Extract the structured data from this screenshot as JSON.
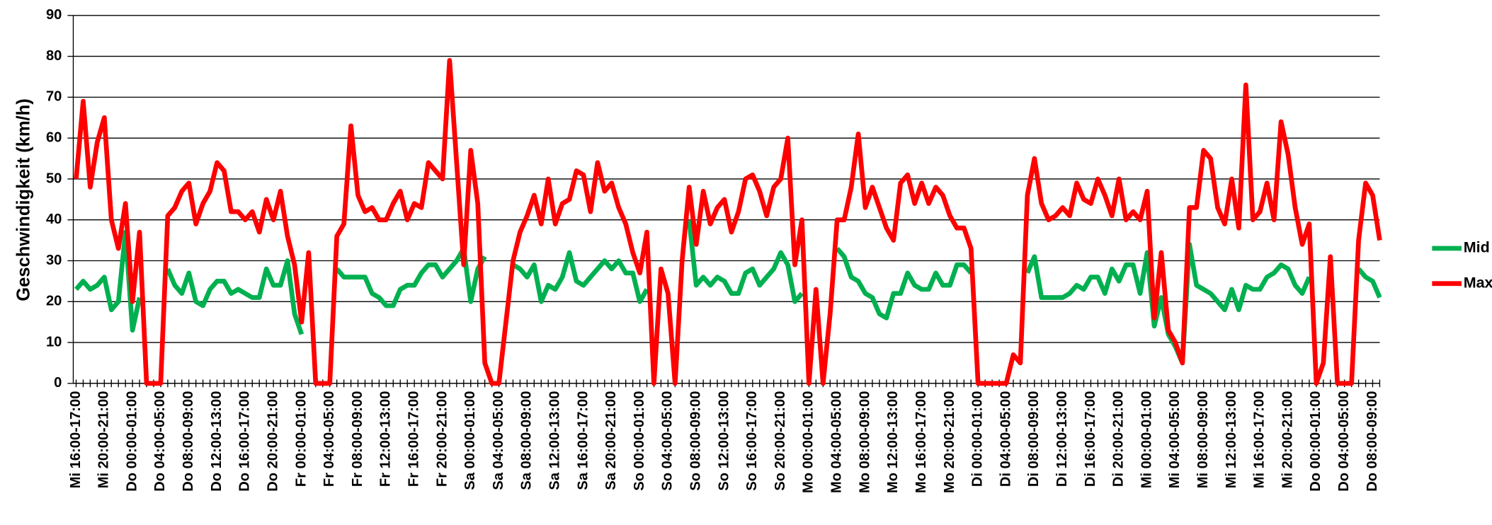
{
  "chart_data": {
    "type": "line",
    "y_label": "Geschwindigkeit (km/h)",
    "ylim": [
      0,
      90
    ],
    "yticks": [
      0,
      10,
      20,
      30,
      40,
      50,
      60,
      70,
      80,
      90
    ],
    "grid": true,
    "legend": "right",
    "categories": [
      "Mi 16:00-17:00",
      null,
      null,
      null,
      "Mi 20:00-21:00",
      null,
      null,
      null,
      "Do 00:00-01:00",
      null,
      null,
      null,
      "Do 04:00-05:00",
      null,
      null,
      null,
      "Do 08:00-09:00",
      null,
      null,
      null,
      "Do 12:00-13:00",
      null,
      null,
      null,
      "Do 16:00-17:00",
      null,
      null,
      null,
      "Do 20:00-21:00",
      null,
      null,
      null,
      "Fr 00:00-01:00",
      null,
      null,
      null,
      "Fr 04:00-05:00",
      null,
      null,
      null,
      "Fr 08:00-09:00",
      null,
      null,
      null,
      "Fr 12:00-13:00",
      null,
      null,
      null,
      "Fr 16:00-17:00",
      null,
      null,
      null,
      "Fr 20:00-21:00",
      null,
      null,
      null,
      "Sa 00:00-01:00",
      null,
      null,
      null,
      "Sa 04:00-05:00",
      null,
      null,
      null,
      "Sa 08:00-09:00",
      null,
      null,
      null,
      "Sa 12:00-13:00",
      null,
      null,
      null,
      "Sa 16:00-17:00",
      null,
      null,
      null,
      "Sa 20:00-21:00",
      null,
      null,
      null,
      "So 00:00-01:00",
      null,
      null,
      null,
      "So 04:00-05:00",
      null,
      null,
      null,
      "So 08:00-09:00",
      null,
      null,
      null,
      "So 12:00-13:00",
      null,
      null,
      null,
      "So 16:00-17:00",
      null,
      null,
      null,
      "So 20:00-21:00",
      null,
      null,
      null,
      "Mo 00:00-01:00",
      null,
      null,
      null,
      "Mo 04:00-05:00",
      null,
      null,
      null,
      "Mo 08:00-09:00",
      null,
      null,
      null,
      "Mo 12:00-13:00",
      null,
      null,
      null,
      "Mo 16:00-17:00",
      null,
      null,
      null,
      "Mo 20:00-21:00",
      null,
      null,
      null,
      "Di 00:00-01:00",
      null,
      null,
      null,
      "Di 04:00-05:00",
      null,
      null,
      null,
      "Di 08:00-09:00",
      null,
      null,
      null,
      "Di 12:00-13:00",
      null,
      null,
      null,
      "Di 16:00-17:00",
      null,
      null,
      null,
      "Di 20:00-21:00",
      null,
      null,
      null,
      "Mi 00:00-01:00",
      null,
      null,
      null,
      "Mi 04:00-05:00",
      null,
      null,
      null,
      "Mi 08:00-09:00",
      null,
      null,
      null,
      "Mi 12:00-13:00",
      null,
      null,
      null,
      "Mi 16:00-17:00",
      null,
      null,
      null,
      "Mi 20:00-21:00",
      null,
      null,
      null,
      "Do 00:00-01:00",
      null,
      null,
      null,
      "Do 04:00-05:00",
      null,
      null,
      null,
      "Do 08:00-09:00",
      null
    ],
    "series": [
      {
        "name": "Mid",
        "color": "#00b050",
        "values": [
          23,
          25,
          23,
          24,
          26,
          18,
          20,
          37,
          13,
          21,
          null,
          null,
          null,
          28,
          24,
          22,
          27,
          20,
          19,
          23,
          25,
          25,
          22,
          23,
          22,
          21,
          21,
          28,
          24,
          24,
          30,
          17,
          12,
          null,
          null,
          null,
          null,
          28,
          26,
          26,
          26,
          26,
          22,
          21,
          19,
          19,
          23,
          24,
          24,
          27,
          29,
          29,
          26,
          28,
          30,
          33,
          20,
          28,
          31,
          null,
          null,
          null,
          29,
          28,
          26,
          29,
          20,
          24,
          23,
          26,
          32,
          25,
          24,
          26,
          28,
          30,
          28,
          30,
          27,
          27,
          20,
          23,
          null,
          null,
          null,
          null,
          null,
          40,
          24,
          26,
          24,
          26,
          25,
          22,
          22,
          27,
          28,
          24,
          26,
          28,
          32,
          29,
          20,
          22,
          null,
          null,
          null,
          null,
          33,
          31,
          26,
          25,
          22,
          21,
          17,
          16,
          22,
          22,
          27,
          24,
          23,
          23,
          27,
          24,
          24,
          29,
          29,
          27,
          null,
          null,
          null,
          null,
          null,
          null,
          null,
          27,
          31,
          21,
          21,
          21,
          21,
          22,
          24,
          23,
          26,
          26,
          22,
          28,
          25,
          29,
          29,
          22,
          32,
          14,
          21,
          12,
          9,
          5,
          34,
          24,
          23,
          22,
          20,
          18,
          23,
          18,
          24,
          23,
          23,
          26,
          27,
          29,
          28,
          24,
          22,
          26,
          null,
          null,
          null,
          null,
          null,
          null,
          28,
          26,
          25,
          21
        ]
      },
      {
        "name": "Max",
        "color": "#ff0000",
        "values": [
          50,
          69,
          48,
          59,
          65,
          40,
          33,
          44,
          20,
          37,
          0,
          0,
          0,
          41,
          43,
          47,
          49,
          39,
          44,
          47,
          54,
          52,
          42,
          42,
          40,
          42,
          37,
          45,
          40,
          47,
          36,
          29,
          15,
          32,
          0,
          0,
          0,
          36,
          39,
          63,
          46,
          42,
          43,
          40,
          40,
          44,
          47,
          40,
          44,
          43,
          54,
          52,
          50,
          79,
          54,
          29,
          57,
          44,
          5,
          0,
          0,
          15,
          30,
          37,
          41,
          46,
          39,
          50,
          39,
          44,
          45,
          52,
          51,
          42,
          54,
          47,
          49,
          43,
          39,
          32,
          27,
          37,
          0,
          28,
          22,
          0,
          30,
          48,
          34,
          47,
          39,
          43,
          45,
          37,
          42,
          50,
          51,
          47,
          41,
          48,
          50,
          60,
          29,
          40,
          0,
          23,
          0,
          17,
          40,
          40,
          48,
          61,
          43,
          48,
          43,
          38,
          35,
          49,
          51,
          44,
          49,
          44,
          48,
          46,
          41,
          38,
          38,
          33,
          0,
          0,
          0,
          0,
          0,
          7,
          5,
          46,
          55,
          44,
          40,
          41,
          43,
          41,
          49,
          45,
          44,
          50,
          46,
          41,
          50,
          40,
          42,
          40,
          47,
          16,
          32,
          13,
          10,
          5,
          43,
          43,
          57,
          55,
          43,
          39,
          50,
          38,
          73,
          40,
          42,
          49,
          40,
          64,
          56,
          43,
          34,
          39,
          0,
          5,
          31,
          0,
          0,
          0,
          35,
          49,
          46,
          35
        ]
      }
    ]
  }
}
